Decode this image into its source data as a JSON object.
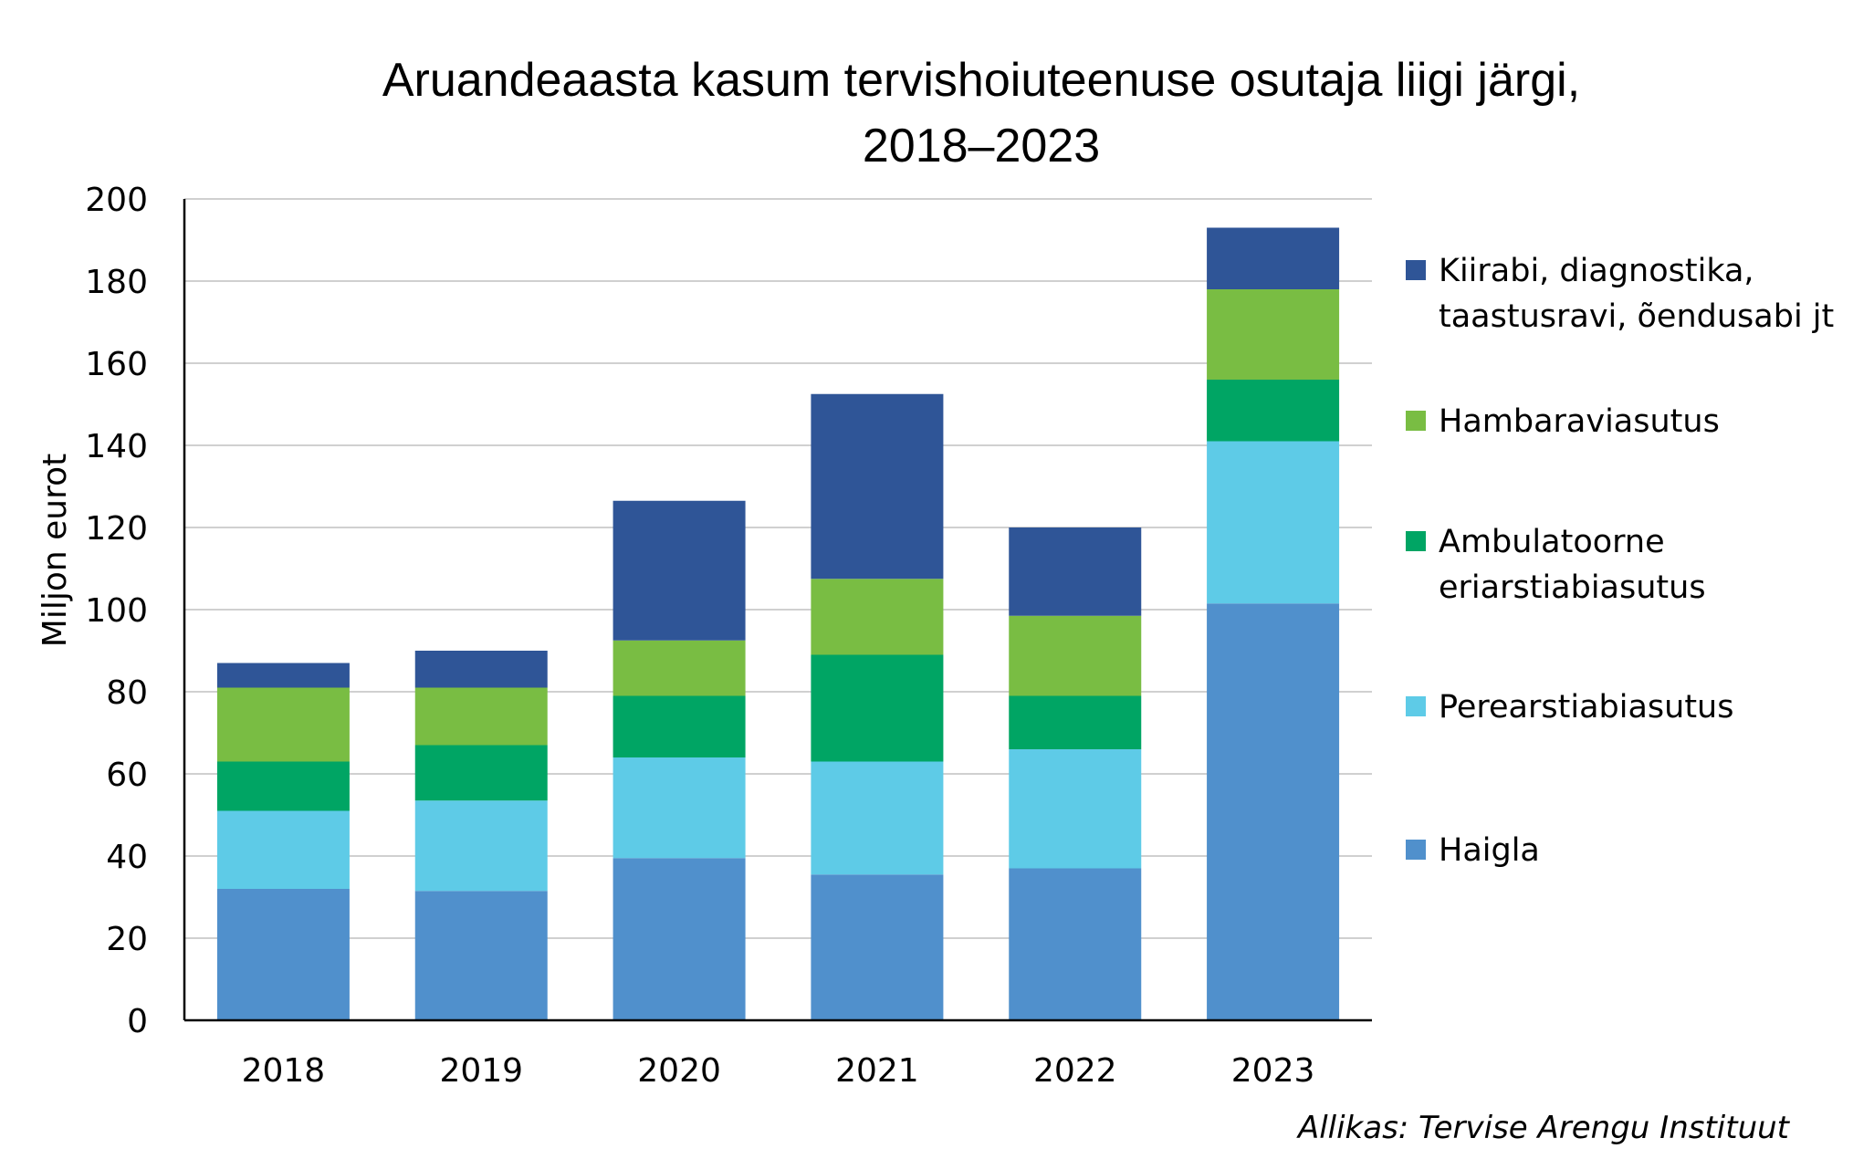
{
  "chart_data": {
    "type": "bar",
    "stacked": true,
    "title": "Aruandeaasta kasum tervishoiuteenuse osutaja liigi järgi, 2018–2023",
    "title_lines": [
      "Aruandeaasta kasum tervishoiuteenuse osutaja liigi järgi,",
      "2018–2023"
    ],
    "ylabel": "Miljon eurot",
    "xlabel": "",
    "ylim": [
      0,
      200
    ],
    "yticks": [
      0,
      20,
      40,
      60,
      80,
      100,
      120,
      140,
      160,
      180,
      200
    ],
    "grid": true,
    "legend_position": "right",
    "categories": [
      "2018",
      "2019",
      "2020",
      "2021",
      "2022",
      "2023"
    ],
    "series": [
      {
        "name": "Haigla",
        "color": "#5090CC",
        "values": [
          32,
          31.5,
          39.5,
          35.5,
          37,
          101.5
        ]
      },
      {
        "name": "Perearstiabiasutus",
        "color": "#5ECBE7",
        "values": [
          19,
          22,
          24.5,
          27.5,
          29,
          39.5
        ]
      },
      {
        "name": "Ambulatoorne eriarstiabiasutus",
        "color": "#00A564",
        "values": [
          12,
          13.5,
          15,
          26,
          13,
          15
        ]
      },
      {
        "name": "Hambaraviasutus",
        "color": "#79BD43",
        "values": [
          18,
          14,
          13.5,
          18.5,
          19.5,
          22
        ]
      },
      {
        "name": "Kiirabi, diagnostika, taastusravi, õendusabi jt",
        "color": "#2F5597",
        "values": [
          6,
          9,
          34,
          45,
          21.5,
          15
        ]
      }
    ],
    "legend": [
      {
        "lines": [
          "Kiirabi, diagnostika,",
          "taastusravi, õendusabi jt"
        ],
        "color": "#2F5597",
        "icon": "legend-swatch"
      },
      {
        "lines": [
          "Hambaraviasutus"
        ],
        "color": "#79BD43",
        "icon": "legend-swatch"
      },
      {
        "lines": [
          "Ambulatoorne",
          "eriarstiabiasutus"
        ],
        "color": "#00A564",
        "icon": "legend-swatch"
      },
      {
        "lines": [
          "Perearstiabiasutus"
        ],
        "color": "#5ECBE7",
        "icon": "legend-swatch"
      },
      {
        "lines": [
          "Haigla"
        ],
        "color": "#5090CC",
        "icon": "legend-swatch"
      }
    ],
    "source": "Allikas: Tervise Arengu Instituut"
  }
}
